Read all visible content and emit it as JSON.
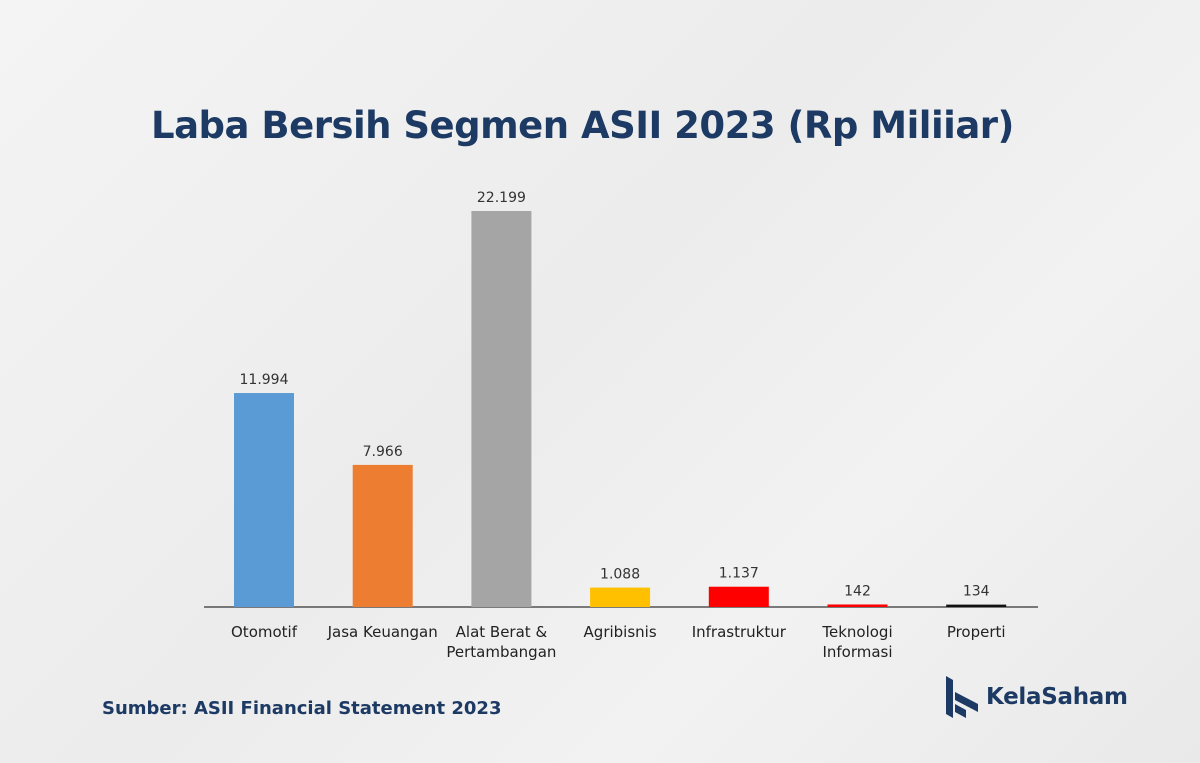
{
  "chart_data": {
    "type": "bar",
    "title": "Laba Bersih Segmen ASII 2023 (Rp Miliiar)",
    "categories": [
      [
        "Otomotif"
      ],
      [
        "Jasa Keuangan"
      ],
      [
        "Alat Berat &",
        "Pertambangan"
      ],
      [
        "Agribisnis"
      ],
      [
        "Infrastruktur"
      ],
      [
        "Teknologi",
        "Informasi"
      ],
      [
        "Properti"
      ]
    ],
    "values": [
      11994,
      7966,
      22199,
      1088,
      1137,
      142,
      134
    ],
    "value_labels": [
      "11.994",
      "7.966",
      "22.199",
      "1.088",
      "1.137",
      "142",
      "134"
    ],
    "colors": [
      "#5b9bd5",
      "#ed7d31",
      "#a5a5a5",
      "#ffc000",
      "#ff0000",
      "#ff0000",
      "#111111"
    ],
    "ylim": [
      0,
      22199
    ],
    "grid": false,
    "legend": "none"
  },
  "source": "Sumber: ASII Financial Statement 2023",
  "logo": {
    "text": "KelaSaham",
    "icon": "kelasaham-logo-icon",
    "color": "#1c3a63"
  }
}
